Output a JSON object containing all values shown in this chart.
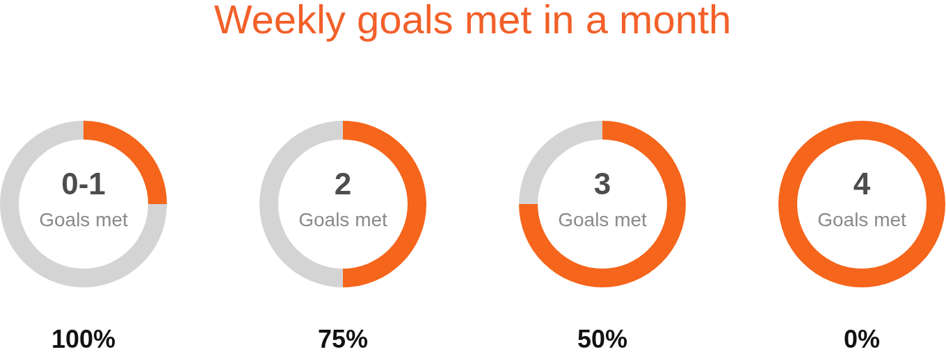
{
  "chart_data": [
    {
      "type": "other",
      "title": "Weekly goals met in a month"
    },
    {
      "type": "donut",
      "title": "0-1",
      "subtitle": "Goals met",
      "categories": [
        null,
        null
      ],
      "values": [
        25,
        75
      ],
      "colors": [
        "#f5651b",
        "#d4d4d4"
      ],
      "annotations": [
        "100%"
      ]
    },
    {
      "type": "donut",
      "title": "2",
      "subtitle": "Goals met",
      "categories": [
        null,
        null
      ],
      "values": [
        50,
        50
      ],
      "colors": [
        "#f5651b",
        "#d4d4d4"
      ],
      "annotations": [
        "75%"
      ]
    },
    {
      "type": "donut",
      "title": "3",
      "subtitle": "Goals met",
      "categories": [
        null,
        null
      ],
      "values": [
        75,
        25
      ],
      "colors": [
        "#f5651b",
        "#d4d4d4"
      ],
      "annotations": [
        "50%"
      ]
    },
    {
      "type": "donut",
      "title": "4",
      "subtitle": "Goals met",
      "categories": [
        null
      ],
      "values": [
        100
      ],
      "colors": [
        "#f5651b"
      ],
      "annotations": [
        "0%"
      ]
    }
  ]
}
